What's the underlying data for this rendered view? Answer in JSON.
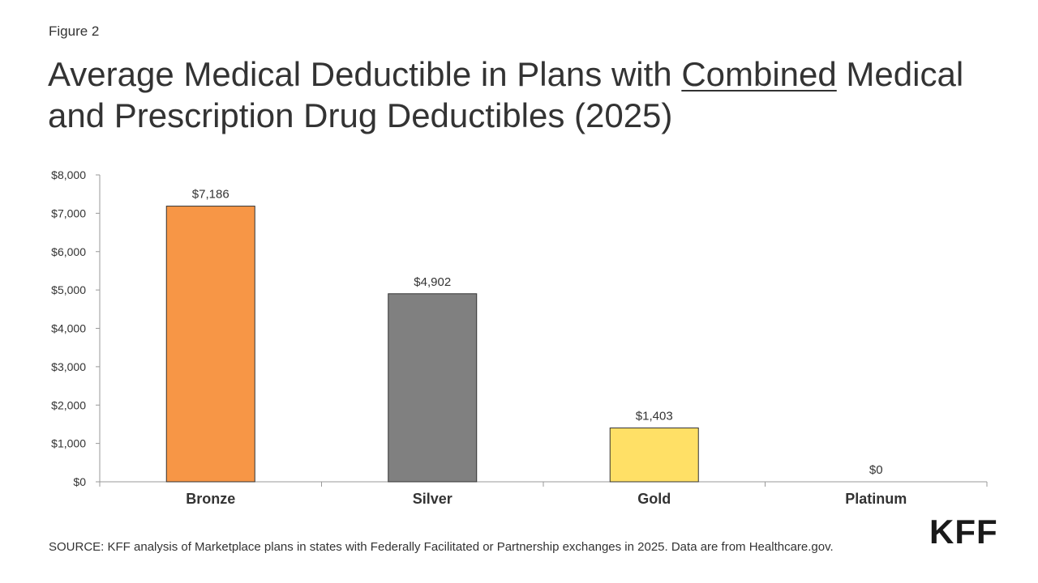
{
  "figure_label": "Figure 2",
  "title": {
    "before": "Average Medical Deductible in Plans with ",
    "underlined": "Combined",
    "after": " Medical and Prescription Drug Deductibles (2025)"
  },
  "source": "SOURCE: KFF analysis of Marketplace plans in states with Federally Facilitated or Partnership exchanges in 2025. Data are from Healthcare.gov.",
  "logo_text": "KFF",
  "chart_data": {
    "type": "bar",
    "title": "Average Medical Deductible in Plans with Combined Medical and Prescription Drug Deductibles (2025)",
    "categories": [
      "Bronze",
      "Silver",
      "Gold",
      "Platinum"
    ],
    "values": [
      7186,
      4902,
      1403,
      0
    ],
    "data_labels": [
      "$7,186",
      "$4,902",
      "$1,403",
      "$0"
    ],
    "colors": [
      "#f79646",
      "#808080",
      "#ffe066",
      "#cccccc"
    ],
    "bar_outline": "#333333",
    "ylim": [
      0,
      8000
    ],
    "yticks": [
      0,
      1000,
      2000,
      3000,
      4000,
      5000,
      6000,
      7000,
      8000
    ],
    "ytick_labels": [
      "$0",
      "$1,000",
      "$2,000",
      "$3,000",
      "$4,000",
      "$5,000",
      "$6,000",
      "$7,000",
      "$8,000"
    ],
    "xlabel": "",
    "ylabel": "",
    "grid": false,
    "legend": "none"
  }
}
